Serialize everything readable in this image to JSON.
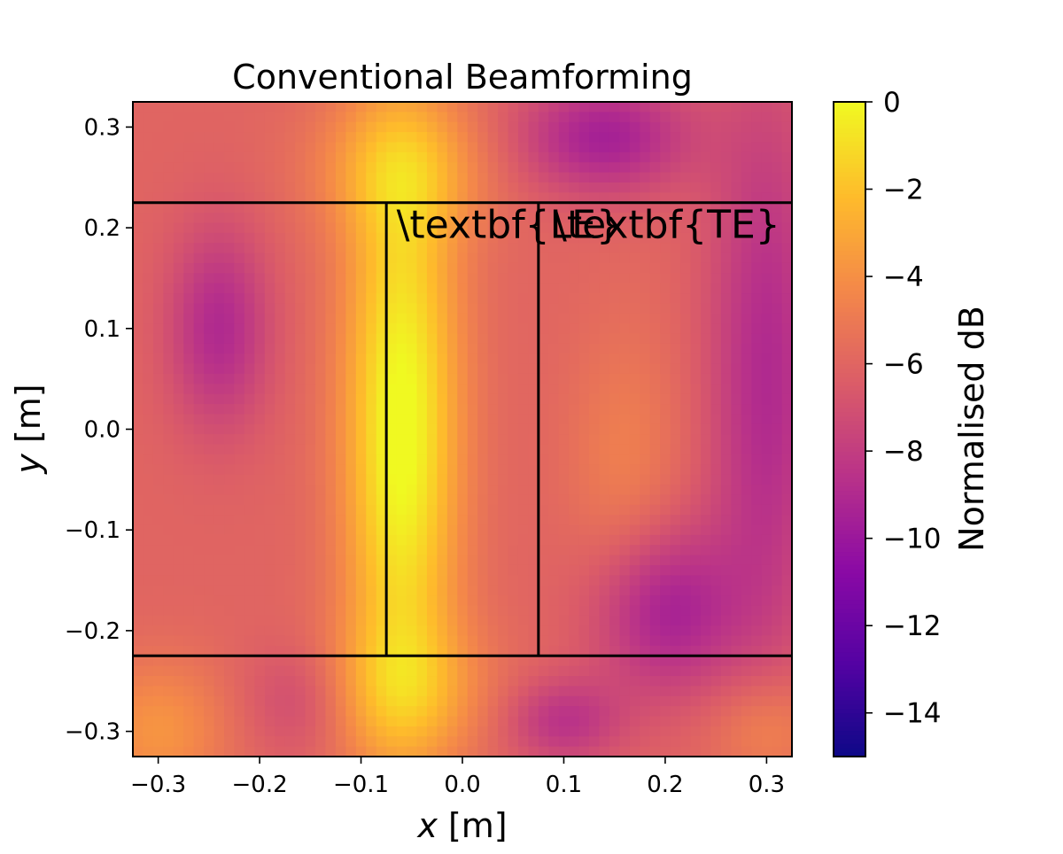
{
  "chart_data": {
    "type": "heatmap",
    "title": "Conventional Beamforming",
    "xlabel": "x [m]",
    "ylabel": "y [m]",
    "xlabel_var": "x",
    "xlabel_unit": " [m]",
    "ylabel_var": "y",
    "ylabel_unit": " [m]",
    "xlim": [
      -0.325,
      0.325
    ],
    "ylim": [
      -0.325,
      0.325
    ],
    "xticks": [
      -0.3,
      -0.2,
      -0.1,
      0.0,
      0.1,
      0.2,
      0.3
    ],
    "xtick_labels": [
      "−0.3",
      "−0.2",
      "−0.1",
      "0.0",
      "0.1",
      "0.2",
      "0.3"
    ],
    "yticks": [
      -0.3,
      -0.2,
      -0.1,
      0.0,
      0.1,
      0.2,
      0.3
    ],
    "ytick_labels": [
      "−0.3",
      "−0.2",
      "−0.1",
      "0.0",
      "0.1",
      "0.2",
      "0.3"
    ],
    "colormap": "plasma",
    "colorbar": {
      "label": "Normalised dB",
      "range": [
        -15,
        0
      ],
      "ticks": [
        0,
        -2,
        -4,
        -6,
        -8,
        -10,
        -12,
        -14
      ],
      "tick_labels": [
        "0",
        "−2",
        "−4",
        "−6",
        "−8",
        "−10",
        "−12",
        "−14"
      ]
    },
    "field_model": {
      "base_db": -6.0,
      "blobs": [
        {
          "x": -0.06,
          "y": 0.0,
          "sx": 0.04,
          "sy": 0.2,
          "amp": 6.3
        },
        {
          "x": -0.06,
          "y": 0.26,
          "sx": 0.06,
          "sy": 0.05,
          "amp": 2.5
        },
        {
          "x": -0.06,
          "y": -0.26,
          "sx": 0.06,
          "sy": 0.05,
          "amp": 2.5
        },
        {
          "x": -0.3,
          "y": -0.3,
          "sx": 0.05,
          "sy": 0.05,
          "amp": 2.2
        },
        {
          "x": 0.16,
          "y": -0.04,
          "sx": 0.04,
          "sy": 0.1,
          "amp": 1.3
        },
        {
          "x": 0.3,
          "y": -0.3,
          "sx": 0.04,
          "sy": 0.04,
          "amp": 1.8
        },
        {
          "x": -0.24,
          "y": 0.1,
          "sx": 0.035,
          "sy": 0.07,
          "amp": -3.0
        },
        {
          "x": 0.14,
          "y": 0.29,
          "sx": 0.06,
          "sy": 0.04,
          "amp": -3.5
        },
        {
          "x": 0.2,
          "y": -0.18,
          "sx": 0.05,
          "sy": 0.06,
          "amp": -3.5
        },
        {
          "x": 0.3,
          "y": 0.05,
          "sx": 0.04,
          "sy": 0.2,
          "amp": -3.0
        },
        {
          "x": 0.1,
          "y": -0.29,
          "sx": 0.04,
          "sy": 0.03,
          "amp": -2.5
        },
        {
          "x": -0.16,
          "y": -0.27,
          "sx": 0.04,
          "sy": 0.04,
          "amp": -1.5
        }
      ]
    },
    "overlay_lines": [
      {
        "x": [
          -0.325,
          0.325
        ],
        "y": [
          0.225,
          0.225
        ]
      },
      {
        "x": [
          -0.325,
          0.325
        ],
        "y": [
          -0.225,
          -0.225
        ]
      },
      {
        "x": [
          -0.075,
          -0.075
        ],
        "y": [
          -0.225,
          0.225
        ]
      },
      {
        "x": [
          0.075,
          0.075
        ],
        "y": [
          -0.225,
          0.225
        ]
      }
    ],
    "annotations": [
      {
        "text": "\\textbf{LE}",
        "x": -0.065,
        "y": 0.19
      },
      {
        "text": "\\textbf{TE}",
        "x": 0.09,
        "y": 0.19
      }
    ]
  }
}
